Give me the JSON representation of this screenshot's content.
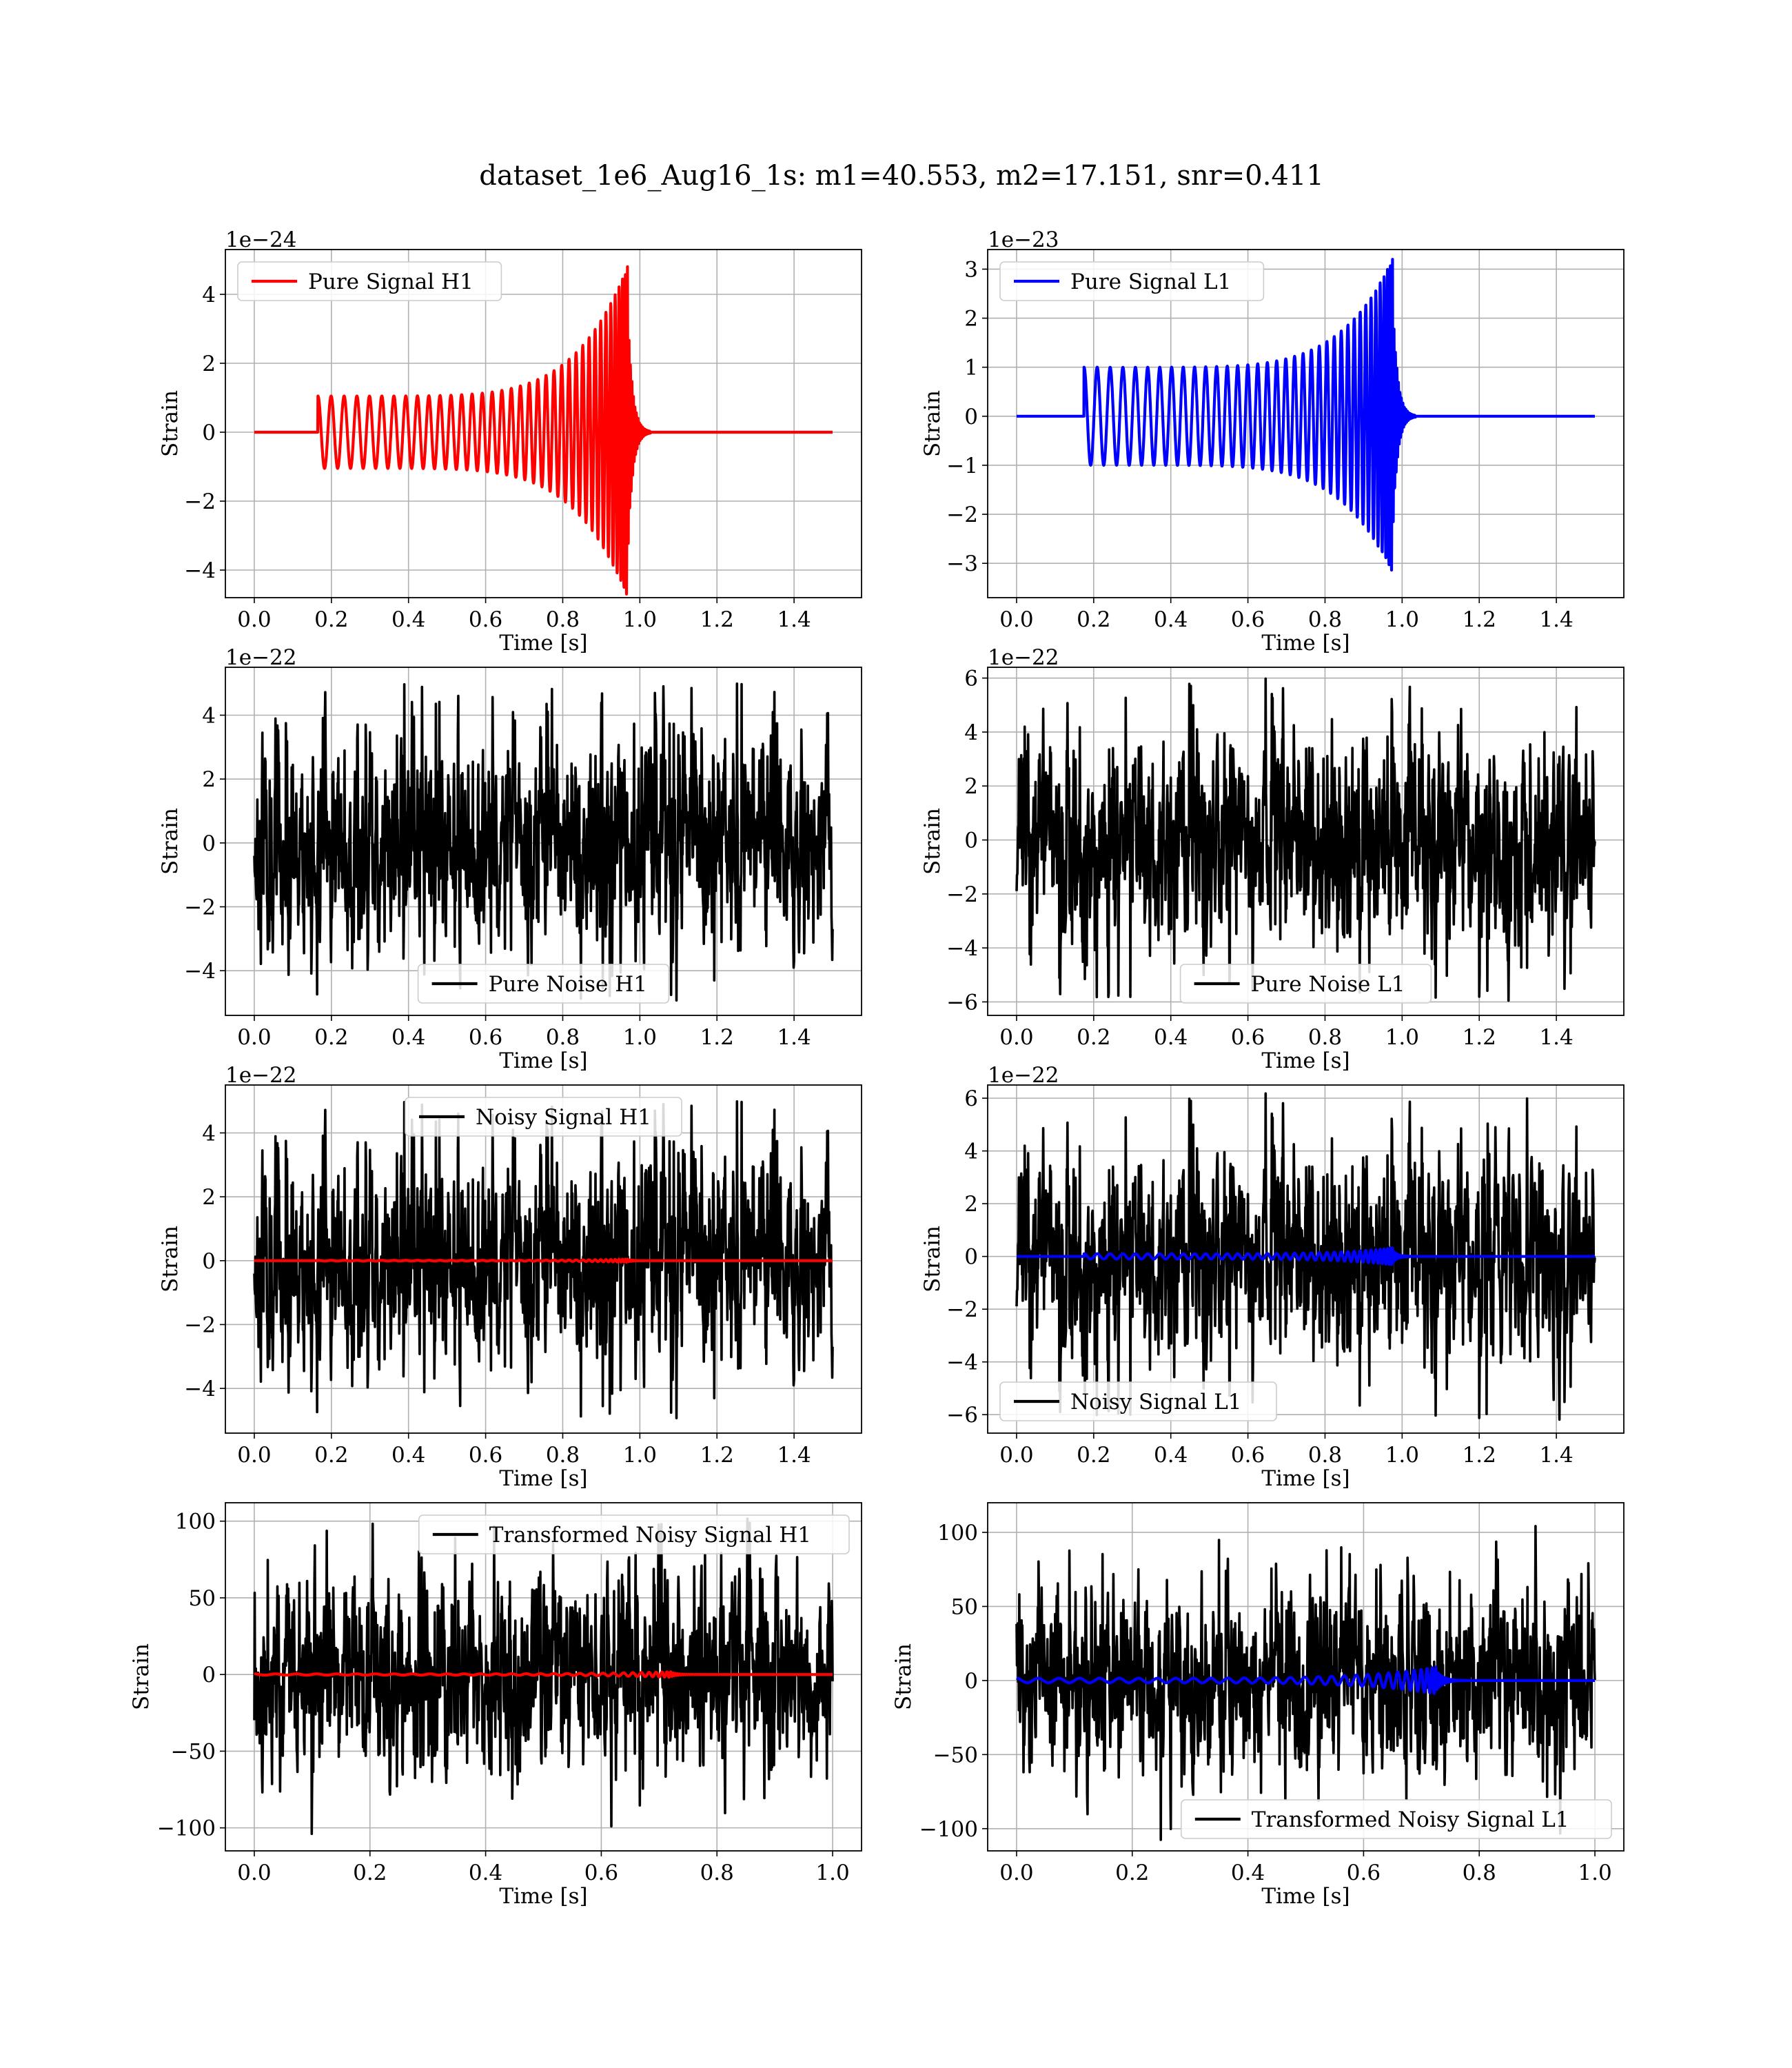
{
  "figure": {
    "title": "dataset_1e6_Aug16_1s: m1=40.553, m2=17.151, snr=0.411"
  },
  "chart_data": [
    {
      "id": "h1-pure-signal",
      "type": "line",
      "xlabel": "Time [s]",
      "ylabel": "Strain",
      "offset_text": "1e−24",
      "xlim": [
        -0.075,
        1.575
      ],
      "ylim": [
        -4.8,
        5.3
      ],
      "xticks": [
        0.0,
        0.2,
        0.4,
        0.6,
        0.8,
        1.0,
        1.2,
        1.4
      ],
      "xtick_labels": [
        "0.0",
        "0.2",
        "0.4",
        "0.6",
        "0.8",
        "1.0",
        "1.2",
        "1.4"
      ],
      "yticks": [
        -4,
        -2,
        0,
        2,
        4
      ],
      "ytick_labels": [
        "−4",
        "−2",
        "0",
        "2",
        "4"
      ],
      "grid": true,
      "legend": {
        "position": "upper-left",
        "entries": [
          {
            "label": "Pure Signal H1",
            "color": "#ff0000"
          }
        ]
      },
      "series": [
        {
          "name": "Pure Signal H1",
          "color": "#ff0000",
          "kind": "chirp",
          "x_range": [
            0.0,
            1.5
          ],
          "onset": 0.165,
          "merger": 0.968,
          "amp_start": 1.05,
          "amp_peak": 4.8,
          "cycles": 36
        }
      ]
    },
    {
      "id": "l1-pure-signal",
      "type": "line",
      "xlabel": "Time [s]",
      "ylabel": "Strain",
      "offset_text": "1e−23",
      "xlim": [
        -0.075,
        1.575
      ],
      "ylim": [
        -3.7,
        3.4
      ],
      "xticks": [
        0.0,
        0.2,
        0.4,
        0.6,
        0.8,
        1.0,
        1.2,
        1.4
      ],
      "xtick_labels": [
        "0.0",
        "0.2",
        "0.4",
        "0.6",
        "0.8",
        "1.0",
        "1.2",
        "1.4"
      ],
      "yticks": [
        -3,
        -2,
        -1,
        0,
        1,
        2,
        3
      ],
      "ytick_labels": [
        "−3",
        "−2",
        "−1",
        "0",
        "1",
        "2",
        "3"
      ],
      "grid": true,
      "legend": {
        "position": "upper-left",
        "entries": [
          {
            "label": "Pure Signal L1",
            "color": "#0000ff"
          }
        ]
      },
      "series": [
        {
          "name": "Pure Signal L1",
          "color": "#0000ff",
          "kind": "chirp",
          "x_range": [
            0.0,
            1.5
          ],
          "onset": 0.175,
          "merger": 0.975,
          "amp_start": 1.0,
          "amp_peak": 3.2,
          "cycles": 36
        }
      ]
    },
    {
      "id": "h1-pure-noise",
      "type": "line",
      "xlabel": "Time [s]",
      "ylabel": "Strain",
      "offset_text": "1e−22",
      "xlim": [
        -0.075,
        1.575
      ],
      "ylim": [
        -5.4,
        5.5
      ],
      "xticks": [
        0.0,
        0.2,
        0.4,
        0.6,
        0.8,
        1.0,
        1.2,
        1.4
      ],
      "xtick_labels": [
        "0.0",
        "0.2",
        "0.4",
        "0.6",
        "0.8",
        "1.0",
        "1.2",
        "1.4"
      ],
      "yticks": [
        -4,
        -2,
        0,
        2,
        4
      ],
      "ytick_labels": [
        "−4",
        "−2",
        "0",
        "2",
        "4"
      ],
      "grid": true,
      "legend": {
        "position": "lower-center",
        "entries": [
          {
            "label": "Pure Noise H1",
            "color": "#000000"
          }
        ]
      },
      "series": [
        {
          "name": "Pure Noise H1",
          "color": "#000000",
          "kind": "noise",
          "x_range": [
            0.0,
            1.5
          ],
          "amplitude": 1.6,
          "max": 5.0,
          "seed": 11
        }
      ]
    },
    {
      "id": "l1-pure-noise",
      "type": "line",
      "xlabel": "Time [s]",
      "ylabel": "Strain",
      "offset_text": "1e−22",
      "xlim": [
        -0.075,
        1.575
      ],
      "ylim": [
        -6.5,
        6.4
      ],
      "xticks": [
        0.0,
        0.2,
        0.4,
        0.6,
        0.8,
        1.0,
        1.2,
        1.4
      ],
      "xtick_labels": [
        "0.0",
        "0.2",
        "0.4",
        "0.6",
        "0.8",
        "1.0",
        "1.2",
        "1.4"
      ],
      "yticks": [
        -6,
        -4,
        -2,
        0,
        2,
        4,
        6
      ],
      "ytick_labels": [
        "−6",
        "−4",
        "−2",
        "0",
        "2",
        "4",
        "6"
      ],
      "grid": true,
      "legend": {
        "position": "lower-center",
        "entries": [
          {
            "label": "Pure Noise L1",
            "color": "#000000"
          }
        ]
      },
      "series": [
        {
          "name": "Pure Noise L1",
          "color": "#000000",
          "kind": "noise",
          "x_range": [
            0.0,
            1.5
          ],
          "amplitude": 1.9,
          "max": 6.0,
          "seed": 23
        }
      ]
    },
    {
      "id": "h1-noisy-signal",
      "type": "line",
      "xlabel": "Time [s]",
      "ylabel": "Strain",
      "offset_text": "1e−22",
      "xlim": [
        -0.075,
        1.575
      ],
      "ylim": [
        -5.4,
        5.5
      ],
      "xticks": [
        0.0,
        0.2,
        0.4,
        0.6,
        0.8,
        1.0,
        1.2,
        1.4
      ],
      "xtick_labels": [
        "0.0",
        "0.2",
        "0.4",
        "0.6",
        "0.8",
        "1.0",
        "1.2",
        "1.4"
      ],
      "yticks": [
        -4,
        -2,
        0,
        2,
        4
      ],
      "ytick_labels": [
        "−4",
        "−2",
        "0",
        "2",
        "4"
      ],
      "grid": true,
      "legend": {
        "position": "upper-center",
        "entries": [
          {
            "label": "Noisy Signal H1",
            "color": "#000000"
          }
        ]
      },
      "series": [
        {
          "name": "Noisy Signal H1",
          "color": "#000000",
          "kind": "noise",
          "x_range": [
            0.0,
            1.5
          ],
          "amplitude": 1.6,
          "max": 5.0,
          "seed": 11
        },
        {
          "color": "#ff0000",
          "kind": "chirp",
          "x_range": [
            0.0,
            1.5
          ],
          "onset": 0.165,
          "merger": 0.968,
          "amp_start": 0.01,
          "amp_peak": 0.048,
          "cycles": 36
        }
      ]
    },
    {
      "id": "l1-noisy-signal",
      "type": "line",
      "xlabel": "Time [s]",
      "ylabel": "Strain",
      "offset_text": "1e−22",
      "xlim": [
        -0.075,
        1.575
      ],
      "ylim": [
        -6.7,
        6.5
      ],
      "xticks": [
        0.0,
        0.2,
        0.4,
        0.6,
        0.8,
        1.0,
        1.2,
        1.4
      ],
      "xtick_labels": [
        "0.0",
        "0.2",
        "0.4",
        "0.6",
        "0.8",
        "1.0",
        "1.2",
        "1.4"
      ],
      "yticks": [
        -6,
        -4,
        -2,
        0,
        2,
        4,
        6
      ],
      "ytick_labels": [
        "−6",
        "−4",
        "−2",
        "0",
        "2",
        "4",
        "6"
      ],
      "grid": true,
      "legend": {
        "position": "lower-left",
        "entries": [
          {
            "label": "Noisy Signal L1",
            "color": "#000000"
          }
        ]
      },
      "series": [
        {
          "name": "Noisy Signal L1",
          "color": "#000000",
          "kind": "noise",
          "x_range": [
            0.0,
            1.5
          ],
          "amplitude": 1.9,
          "max": 6.2,
          "seed": 23
        },
        {
          "color": "#0000ff",
          "kind": "chirp",
          "x_range": [
            0.0,
            1.5
          ],
          "onset": 0.175,
          "merger": 0.975,
          "amp_start": 0.1,
          "amp_peak": 0.32,
          "cycles": 36
        }
      ]
    },
    {
      "id": "h1-transformed",
      "type": "line",
      "xlabel": "Time [s]",
      "ylabel": "Strain",
      "offset_text": "",
      "xlim": [
        -0.05,
        1.05
      ],
      "ylim": [
        -115,
        112
      ],
      "xticks": [
        0.0,
        0.2,
        0.4,
        0.6,
        0.8,
        1.0
      ],
      "xtick_labels": [
        "0.0",
        "0.2",
        "0.4",
        "0.6",
        "0.8",
        "1.0"
      ],
      "yticks": [
        -100,
        -50,
        0,
        50,
        100
      ],
      "ytick_labels": [
        "−100",
        "−50",
        "0",
        "50",
        "100"
      ],
      "grid": true,
      "legend": {
        "position": "upper-right",
        "entries": [
          {
            "label": "Transformed Noisy Signal H1",
            "color": "#000000"
          }
        ]
      },
      "series": [
        {
          "name": "Transformed Noisy Signal H1",
          "color": "#000000",
          "kind": "noise",
          "x_range": [
            0.0,
            1.0
          ],
          "amplitude": 30,
          "max": 105,
          "seed": 37
        },
        {
          "color": "#ff0000",
          "kind": "chirp",
          "x_range": [
            0.0,
            1.0
          ],
          "onset": 0.0,
          "merger": 0.72,
          "amp_start": 0.4,
          "amp_peak": 1.8,
          "cycles": 30
        }
      ]
    },
    {
      "id": "l1-transformed",
      "type": "line",
      "xlabel": "Time [s]",
      "ylabel": "Strain",
      "offset_text": "",
      "xlim": [
        -0.05,
        1.05
      ],
      "ylim": [
        -115,
        120
      ],
      "xticks": [
        0.0,
        0.2,
        0.4,
        0.6,
        0.8,
        1.0
      ],
      "xtick_labels": [
        "0.0",
        "0.2",
        "0.4",
        "0.6",
        "0.8",
        "1.0"
      ],
      "yticks": [
        -100,
        -50,
        0,
        50,
        100
      ],
      "ytick_labels": [
        "−100",
        "−50",
        "0",
        "50",
        "100"
      ],
      "grid": true,
      "legend": {
        "position": "lower-right",
        "entries": [
          {
            "label": "Transformed Noisy Signal L1",
            "color": "#000000"
          }
        ]
      },
      "series": [
        {
          "name": "Transformed Noisy Signal L1",
          "color": "#000000",
          "kind": "noise",
          "x_range": [
            0.0,
            1.0
          ],
          "amplitude": 30,
          "max": 110,
          "seed": 53
        },
        {
          "color": "#0000ff",
          "kind": "chirp",
          "x_range": [
            0.0,
            1.0
          ],
          "onset": 0.0,
          "merger": 0.725,
          "amp_start": 1.5,
          "amp_peak": 9,
          "cycles": 30
        }
      ]
    }
  ]
}
